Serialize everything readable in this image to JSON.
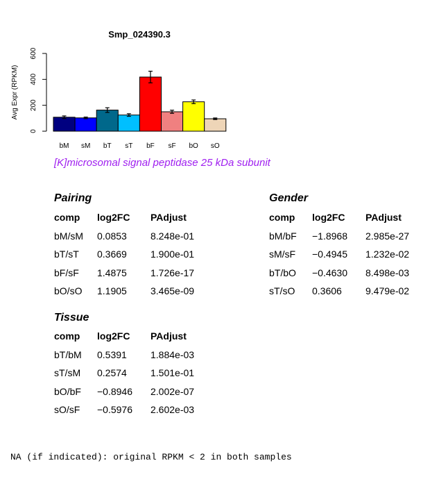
{
  "chart_data": {
    "type": "bar",
    "title": "Smp_024390.3",
    "ylabel": "Avg Expr (RPKM)",
    "xlabel": "",
    "ylim": [
      0,
      600
    ],
    "yticks": [
      0,
      200,
      400,
      600
    ],
    "categories": [
      "bM",
      "sM",
      "bT",
      "sT",
      "bF",
      "sF",
      "bO",
      "sO"
    ],
    "values": [
      108,
      103,
      163,
      125,
      418,
      150,
      227,
      96
    ],
    "errors": [
      10,
      6,
      18,
      10,
      45,
      12,
      14,
      6
    ],
    "colors": [
      "#000080",
      "#0000ff",
      "#00688b",
      "#00bfff",
      "#ff0000",
      "#f08080",
      "#ffff00",
      "#eed5b7"
    ],
    "grid": false,
    "legend": "none"
  },
  "subtitle": "[K]microsomal signal peptidase 25 kDa subunit",
  "tables": {
    "pairing": {
      "title": "Pairing",
      "headers": [
        "comp",
        "log2FC",
        "PAdjust"
      ],
      "rows": [
        [
          "bM/sM",
          "0.0853",
          "8.248e-01"
        ],
        [
          "bT/sT",
          "0.3669",
          "1.900e-01"
        ],
        [
          "bF/sF",
          "1.4875",
          "1.726e-17"
        ],
        [
          "bO/sO",
          "1.1905",
          "3.465e-09"
        ]
      ]
    },
    "gender": {
      "title": "Gender",
      "headers": [
        "comp",
        "log2FC",
        "PAdjust"
      ],
      "rows": [
        [
          "bM/bF",
          "−1.8968",
          "2.985e-27"
        ],
        [
          "sM/sF",
          "−0.4945",
          "1.232e-02"
        ],
        [
          "bT/bO",
          "−0.4630",
          "8.498e-03"
        ],
        [
          "sT/sO",
          "0.3606",
          "9.479e-02"
        ]
      ]
    },
    "tissue": {
      "title": "Tissue",
      "headers": [
        "comp",
        "log2FC",
        "PAdjust"
      ],
      "rows": [
        [
          "bT/bM",
          "0.5391",
          "1.884e-03"
        ],
        [
          "sT/sM",
          "0.2574",
          "1.501e-01"
        ],
        [
          "bO/bF",
          "−0.8946",
          "2.002e-07"
        ],
        [
          "sO/sF",
          "−0.5976",
          "2.602e-03"
        ]
      ]
    }
  },
  "footnote": "NA (if indicated): original RPKM < 2 in both samples"
}
